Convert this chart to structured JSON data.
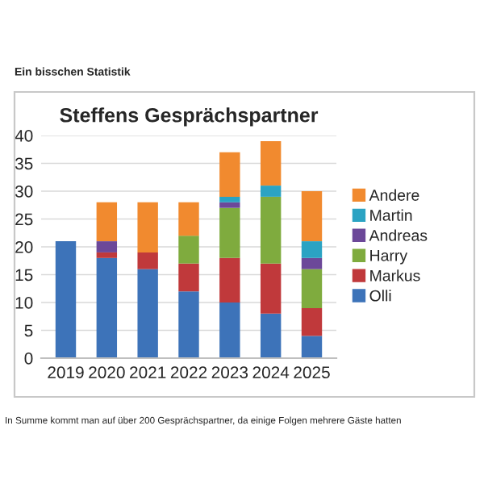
{
  "chart_data": {
    "type": "bar",
    "title": "Steffens Gesprächspartner",
    "annotations": [
      "Ein bisschen Statistik",
      "In Summe kommt man auf über 200 Gesprächspartner, da einige Folgen mehrere Gäste hatten"
    ],
    "categories": [
      "2019",
      "2020",
      "2021",
      "2022",
      "2023",
      "2024",
      "2025"
    ],
    "stacked": true,
    "series": [
      {
        "name": "Olli",
        "color": "#3d73b9",
        "values": [
          21,
          18,
          16,
          12,
          10,
          8,
          4
        ]
      },
      {
        "name": "Markus",
        "color": "#c0393b",
        "values": [
          0,
          1,
          3,
          5,
          8,
          9,
          5
        ]
      },
      {
        "name": "Harry",
        "color": "#7fab3e",
        "values": [
          0,
          0,
          0,
          5,
          9,
          12,
          7
        ]
      },
      {
        "name": "Andreas",
        "color": "#6c4899",
        "values": [
          0,
          2,
          0,
          0,
          1,
          0,
          2
        ]
      },
      {
        "name": "Martin",
        "color": "#2ba3c3",
        "values": [
          0,
          0,
          0,
          0,
          1,
          2,
          3
        ]
      },
      {
        "name": "Andere",
        "color": "#f18a2f",
        "values": [
          0,
          7,
          9,
          6,
          8,
          8,
          9
        ]
      }
    ],
    "ylim": [
      0,
      40
    ],
    "yticks": [
      0,
      5,
      10,
      15,
      20,
      25,
      30,
      35,
      40
    ],
    "grid": "y",
    "legend": "right"
  }
}
